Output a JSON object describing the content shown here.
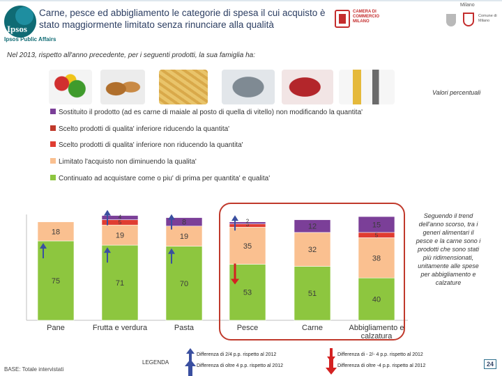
{
  "header": {
    "title": "Carne, pesce ed abbigliamento le categorie di spesa il cui acquisto è stato maggiormente limitato senza rinunciare alla qualità",
    "ipsos_logo": "Ipsos",
    "ipsos_sub": "Ipsos Public Affairs",
    "camera_logo": "CAMERA DI COMMERCIO MILANO",
    "milano_logo": "Milano",
    "comune_logo": "Comune di Milano"
  },
  "question": "Nel 2013, rispetto all'anno precedente,  per i seguenti prodotti, la sua famiglia ha:",
  "valori_label": "Valori percentuali",
  "chart_data": {
    "type": "bar",
    "stacked": true,
    "categories": [
      "Pane",
      "Frutta e verdura",
      "Pasta",
      "Pesce",
      "Carne",
      "Abbigliamento e calzatura"
    ],
    "series": [
      {
        "name": "Continuato ad acquistare come o piu' di prima per quantita' e qualita'",
        "color": "#8dc63f",
        "values": [
          75,
          71,
          70,
          53,
          51,
          40
        ]
      },
      {
        "name": "Limitato l'acquisto non diminuendo la qualita'",
        "color": "#fac090",
        "values": [
          18,
          19,
          19,
          35,
          32,
          38
        ]
      },
      {
        "name": "Scelto prodotti di qualita' inferiore non riducendo la quantita'",
        "color": "#e03c31",
        "values": [
          null,
          5,
          null,
          3,
          null,
          5
        ]
      },
      {
        "name": "Scelto prodotti di qualita' inferiore riducendo la quantita'",
        "color": "#c0392b",
        "values": [
          null,
          null,
          null,
          null,
          null,
          null
        ]
      },
      {
        "name": "Sostituito il prodotto (ad es  carne di maiale al posto di quella di vitello) non modificando la quantita'",
        "color": "#7b3f98",
        "values": [
          null,
          4,
          8,
          2,
          12,
          15
        ]
      }
    ],
    "highlighted_categories": [
      "Pesce",
      "Carne",
      "Abbigliamento e calzatura"
    ],
    "ylim": [
      0,
      100
    ],
    "arrows": {
      "Pane": {
        "Continuato ad acquistare come o piu' di prima per quantita' e qualita'": "up-small"
      },
      "Frutta e verdura": {
        "Continuato ad acquistare come o piu' di prima per quantita' e qualita'": "up-small",
        "Sostituito il prodotto (ad es  carne di maiale al posto di quella di vitello) non modificando la quantita'": "up-small"
      },
      "Pasta": {
        "Continuato ad acquistare come o piu' di prima per quantita' e qualita'": "up-small",
        "Sostituito il prodotto (ad es  carne di maiale al posto di quella di vitello) non modificando la quantita'": "up-small"
      },
      "Pesce": {
        "Continuato ad acquistare come o piu' di prima per quantita' e qualita'": "down-big",
        "Sostituito il prodotto (ad es  carne di maiale al posto di quella di vitello) non modificando la quantita'": "up-small"
      }
    }
  },
  "note": "Seguendo il trend dell'anno scorso, tra i generi alimentari il pesce e la carne sono i prodotti che sono stati più ridimensionati, unitamente alle spese per abbigliamento e calzature",
  "legenda_label": "LEGENDA",
  "legenda": [
    {
      "symbol": "up-small",
      "text": "Differenza di 2/4 p.p. rispetto al 2012"
    },
    {
      "symbol": "up-big",
      "text": "Differenza di oltre 4 p.p. rispetto al 2012"
    },
    {
      "symbol": "down-small",
      "text": "Differenza di - 2/- 4 p.p. rispetto al 2012"
    },
    {
      "symbol": "down-big",
      "text": "Differenza di oltre -4 p.p. rispetto al 2012"
    }
  ],
  "base": "BASE: Totale intervistati",
  "page_number": "24",
  "colors": {
    "up_arrow": "#3a4fa0",
    "down_arrow": "#d42121",
    "highlight_border": "#c0392b"
  }
}
